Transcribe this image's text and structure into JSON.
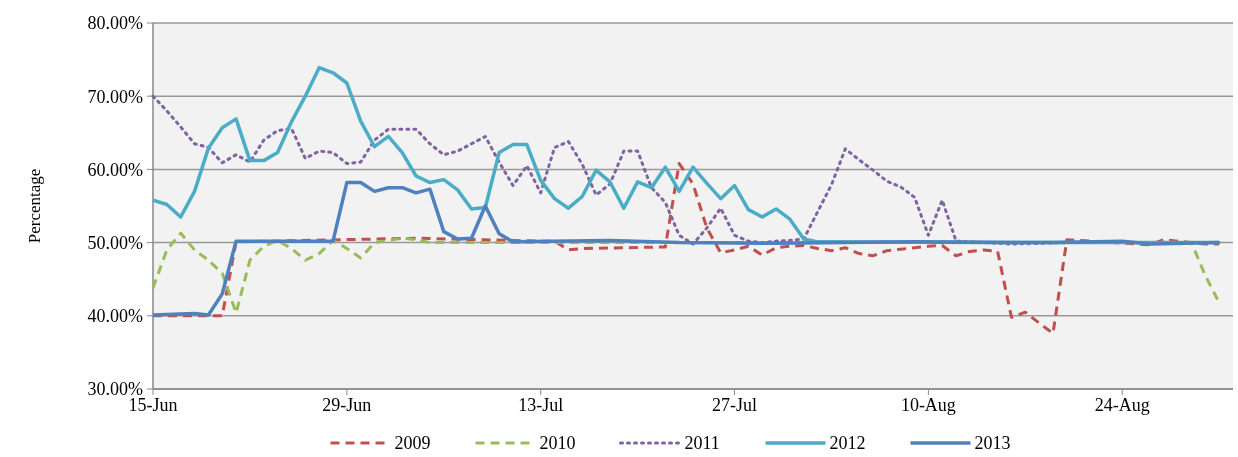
{
  "chart_data": {
    "type": "line",
    "ylabel": "Percentage",
    "xlim": [
      "--06-15",
      "--09-01"
    ],
    "xticks": [
      {
        "value": "--06-15",
        "label": "15-Jun"
      },
      {
        "value": "--06-29",
        "label": "29-Jun"
      },
      {
        "value": "--07-13",
        "label": "13-Jul"
      },
      {
        "value": "--07-27",
        "label": "27-Jul"
      },
      {
        "value": "--08-10",
        "label": "10-Aug"
      },
      {
        "value": "--08-24",
        "label": "24-Aug"
      }
    ],
    "ylim": [
      30,
      80
    ],
    "yticks": [
      {
        "value": 30,
        "label": "30.00%"
      },
      {
        "value": 40,
        "label": "40.00%"
      },
      {
        "value": 50,
        "label": "50.00%"
      },
      {
        "value": 60,
        "label": "60.00%"
      },
      {
        "value": 70,
        "label": "70.00%"
      },
      {
        "value": 80,
        "label": "80.00%"
      }
    ],
    "grid": "y",
    "legend": "bottom",
    "series": [
      {
        "name": "2009",
        "color": "#c0504d",
        "line_style": "dashed",
        "x": [
          "--06-15",
          "--06-20",
          "--06-21",
          "--07-04",
          "--07-13",
          "--07-14",
          "--07-15",
          "--07-16",
          "--07-22",
          "--07-23",
          "--07-24",
          "--07-25",
          "--07-26",
          "--07-27",
          "--07-28",
          "--07-29",
          "--07-30",
          "--07-31",
          "--08-01",
          "--08-02",
          "--08-03",
          "--08-04",
          "--08-05",
          "--08-06",
          "--08-07",
          "--08-08",
          "--08-09",
          "--08-10",
          "--08-11",
          "--08-12",
          "--08-13",
          "--08-14",
          "--08-15",
          "--08-16",
          "--08-17",
          "--08-18",
          "--08-19",
          "--08-20",
          "--08-26",
          "--08-27",
          "--08-30",
          "--08-31"
        ],
        "values": [
          40,
          40,
          50.1,
          50.6,
          50.2,
          50.2,
          49,
          49.2,
          49.4,
          60.8,
          58,
          52,
          48.6,
          49,
          49.5,
          48.3,
          49.3,
          49.5,
          49.6,
          49.2,
          48.9,
          49.3,
          48.5,
          48.2,
          48.9,
          49.1,
          49.3,
          49.5,
          49.6,
          48.2,
          48.8,
          49,
          48.8,
          39.8,
          40.5,
          39,
          37.6,
          50.4,
          49.7,
          50.4,
          49.8,
          49.8
        ]
      },
      {
        "name": "2010",
        "color": "#9bbb59",
        "line_style": "dashed",
        "x": [
          "--06-15",
          "--06-16",
          "--06-17",
          "--06-18",
          "--06-19",
          "--06-20",
          "--06-21",
          "--06-22",
          "--06-23",
          "--06-24",
          "--06-25",
          "--06-26",
          "--06-27",
          "--06-28",
          "--06-29",
          "--06-30",
          "--07-01",
          "--07-02",
          "--07-03",
          "--07-04",
          "--07-05",
          "--07-25",
          "--08-28",
          "--08-29",
          "--08-30",
          "--08-31"
        ],
        "values": [
          43.8,
          49,
          51.3,
          49,
          47.6,
          45.8,
          40.4,
          47.6,
          49.5,
          50.3,
          49.2,
          47.6,
          48.5,
          50.3,
          49.2,
          47.9,
          50,
          50.3,
          50.6,
          50.4,
          50,
          50,
          50,
          50,
          45.5,
          41.8
        ]
      },
      {
        "name": "2011",
        "color": "#8064a2",
        "line_style": "dotted",
        "x": [
          "--06-15",
          "--06-16",
          "--06-17",
          "--06-18",
          "--06-19",
          "--06-20",
          "--06-21",
          "--06-22",
          "--06-23",
          "--06-24",
          "--06-25",
          "--06-26",
          "--06-27",
          "--06-28",
          "--06-29",
          "--06-30",
          "--07-01",
          "--07-02",
          "--07-03",
          "--07-04",
          "--07-05",
          "--07-06",
          "--07-07",
          "--07-08",
          "--07-09",
          "--07-10",
          "--07-11",
          "--07-12",
          "--07-13",
          "--07-14",
          "--07-15",
          "--07-16",
          "--07-17",
          "--07-18",
          "--07-19",
          "--07-20",
          "--07-21",
          "--07-22",
          "--07-23",
          "--07-24",
          "--07-25",
          "--07-26",
          "--07-27",
          "--07-28",
          "--07-29",
          "--07-30",
          "--07-31",
          "--08-01",
          "--08-02",
          "--08-03",
          "--08-04",
          "--08-05",
          "--08-06",
          "--08-07",
          "--08-08",
          "--08-09",
          "--08-10",
          "--08-11",
          "--08-12",
          "--08-14",
          "--08-16",
          "--08-20",
          "--08-31"
        ],
        "values": [
          70,
          68,
          65.8,
          63.5,
          63,
          60.9,
          62,
          61,
          64,
          65.3,
          65.6,
          61.5,
          62.5,
          62.3,
          60.8,
          61,
          64,
          65.5,
          65.5,
          65.5,
          63.5,
          62,
          62.5,
          63.5,
          64.5,
          61,
          57.8,
          60.5,
          56.8,
          63,
          63.8,
          60.7,
          56.5,
          58,
          62.5,
          62.5,
          57.5,
          55.5,
          51,
          49.8,
          52,
          54.7,
          51,
          50.2,
          50,
          50.2,
          50.3,
          50.5,
          54.2,
          57.9,
          62.8,
          61.3,
          59.9,
          58.4,
          57.6,
          56.2,
          51,
          55.8,
          50.2,
          50,
          49.8,
          50,
          50
        ]
      },
      {
        "name": "2012",
        "color": "#4bacc6",
        "line_style": "solid",
        "x": [
          "--06-15",
          "--06-16",
          "--06-17",
          "--06-18",
          "--06-19",
          "--06-20",
          "--06-21",
          "--06-22",
          "--06-23",
          "--06-24",
          "--06-25",
          "--06-26",
          "--06-27",
          "--06-28",
          "--06-29",
          "--06-30",
          "--07-01",
          "--07-02",
          "--07-03",
          "--07-04",
          "--07-05",
          "--07-06",
          "--07-07",
          "--07-08",
          "--07-09",
          "--07-10",
          "--07-11",
          "--07-12",
          "--07-13",
          "--07-14",
          "--07-15",
          "--07-16",
          "--07-17",
          "--07-18",
          "--07-19",
          "--07-20",
          "--07-21",
          "--07-22",
          "--07-23",
          "--07-24",
          "--07-25",
          "--07-26",
          "--07-27",
          "--07-28",
          "--07-29",
          "--07-30",
          "--07-31",
          "--08-01",
          "--08-02",
          "--08-14",
          "--08-31"
        ],
        "values": [
          55.8,
          55.2,
          53.5,
          57,
          62.9,
          65.7,
          66.9,
          61.2,
          61.2,
          62.3,
          66.5,
          70,
          73.9,
          73.2,
          71.8,
          66.6,
          63.1,
          64.5,
          62.3,
          59.1,
          58.2,
          58.6,
          57.2,
          54.6,
          54.8,
          62.3,
          63.4,
          63.4,
          58.5,
          56,
          54.7,
          56.3,
          59.9,
          58.3,
          54.7,
          58.3,
          57.5,
          60.3,
          57,
          60.3,
          58.1,
          56,
          57.8,
          54.5,
          53.5,
          54.6,
          53.2,
          50.5,
          50.1,
          50,
          50
        ]
      },
      {
        "name": "2013",
        "color": "#4f81bd",
        "line_style": "solid",
        "x": [
          "--06-15",
          "--06-18",
          "--06-19",
          "--06-20",
          "--06-21",
          "--06-28",
          "--06-29",
          "--06-30",
          "--07-01",
          "--07-02",
          "--07-03",
          "--07-04",
          "--07-05",
          "--07-06",
          "--07-07",
          "--07-08",
          "--07-09",
          "--07-10",
          "--07-11",
          "--07-18",
          "--07-23",
          "--07-30",
          "--08-09",
          "--08-19",
          "--08-24",
          "--08-26",
          "--08-31"
        ],
        "values": [
          40.1,
          40.3,
          40.1,
          43,
          50.2,
          50.2,
          58.2,
          58.2,
          57,
          57.5,
          57.5,
          56.8,
          57.3,
          51.5,
          50.5,
          50.6,
          55,
          51.2,
          50.1,
          50.3,
          50,
          49.9,
          50.1,
          50,
          50.2,
          49.8,
          50
        ]
      }
    ]
  }
}
